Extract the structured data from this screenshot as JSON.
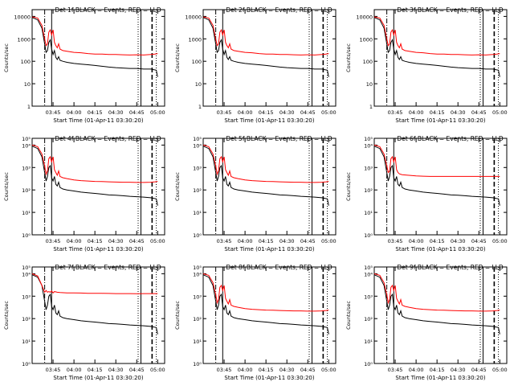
{
  "chart_data": [
    {
      "type": "line",
      "title": "Det 1f BLACK = Events, RED = LLD",
      "xlabel": "Start Time (01-Apr-11 03:30:20)",
      "ylabel": "Counts/sec",
      "y_ticks": [
        "1",
        "10",
        "100",
        "1000",
        "10000"
      ],
      "x_ticks": [
        "03:45",
        "04:00",
        "04:15",
        "04:30",
        "04:45",
        "05:00"
      ],
      "series": [
        {
          "name": "Events",
          "color": "#000000",
          "profile": "events_a"
        },
        {
          "name": "LLD",
          "color": "#ff0000",
          "profile": "lld_a"
        }
      ]
    },
    {
      "type": "line",
      "title": "Det 2f BLACK = Events, RED = LLD",
      "xlabel": "Start Time (01-Apr-11 03:30:20)",
      "ylabel": "Counts/sec",
      "y_ticks": [
        "1",
        "10",
        "100",
        "1000",
        "10000"
      ],
      "x_ticks": [
        "03:45",
        "04:00",
        "04:15",
        "04:30",
        "04:45",
        "05:00"
      ],
      "series": [
        {
          "name": "Events",
          "color": "#000000",
          "profile": "events_a"
        },
        {
          "name": "LLD",
          "color": "#ff0000",
          "profile": "lld_a"
        }
      ]
    },
    {
      "type": "line",
      "title": "Det 3f BLACK = Events, RED = LLD",
      "xlabel": "Start Time (01-Apr-11 03:30:20)",
      "ylabel": "Counts/sec",
      "y_ticks": [
        "1",
        "10",
        "100",
        "1000",
        "10000"
      ],
      "x_ticks": [
        "03:45",
        "04:00",
        "04:15",
        "04:30",
        "04:45",
        "05:00"
      ],
      "series": [
        {
          "name": "Events",
          "color": "#000000",
          "profile": "events_a"
        },
        {
          "name": "LLD",
          "color": "#ff0000",
          "profile": "lld_a"
        }
      ]
    },
    {
      "type": "line",
      "title": "Det 4f BLACK = Events, RED = LLD",
      "xlabel": "Start Time (01-Apr-11 03:30:20)",
      "ylabel": "Counts/sec",
      "y_ticks": [
        "10⁰",
        "10¹",
        "10²",
        "10³",
        "10⁴",
        "10⁵"
      ],
      "x_ticks": [
        "03:45",
        "04:00",
        "04:15",
        "04:30",
        "04:45",
        "05:00"
      ],
      "series": [
        {
          "name": "Events",
          "color": "#000000",
          "profile": "events_b"
        },
        {
          "name": "LLD",
          "color": "#ff0000",
          "profile": "lld_b"
        }
      ]
    },
    {
      "type": "line",
      "title": "Det 5f BLACK = Events, RED = LLD",
      "xlabel": "Start Time (01-Apr-11 03:30:20)",
      "ylabel": "Counts/sec",
      "y_ticks": [
        "10⁰",
        "10¹",
        "10²",
        "10³",
        "10⁴",
        "10⁵"
      ],
      "x_ticks": [
        "03:45",
        "04:00",
        "04:15",
        "04:30",
        "04:45",
        "05:00"
      ],
      "series": [
        {
          "name": "Events",
          "color": "#000000",
          "profile": "events_b"
        },
        {
          "name": "LLD",
          "color": "#ff0000",
          "profile": "lld_b"
        }
      ]
    },
    {
      "type": "line",
      "title": "Det 6f BLACK = Events, RED = LLD",
      "xlabel": "Start Time (01-Apr-11 03:30:20)",
      "ylabel": "Counts/sec",
      "y_ticks": [
        "10⁰",
        "10¹",
        "10²",
        "10³",
        "10⁴",
        "10⁵"
      ],
      "x_ticks": [
        "03:45",
        "04:00",
        "04:15",
        "04:30",
        "04:45",
        "05:00"
      ],
      "series": [
        {
          "name": "Events",
          "color": "#000000",
          "profile": "events_b"
        },
        {
          "name": "LLD",
          "color": "#ff0000",
          "profile": "lld_c"
        }
      ]
    },
    {
      "type": "line",
      "title": "Det 7f BLACK = Events, RED = LLD",
      "xlabel": "Start Time (01-Apr-11 03:30:20)",
      "ylabel": "Counts/sec",
      "y_ticks": [
        "10⁰",
        "10¹",
        "10²",
        "10³",
        "10⁴",
        "10⁵"
      ],
      "x_ticks": [
        "03:45",
        "04:00",
        "04:15",
        "04:30",
        "04:45",
        "05:00"
      ],
      "series": [
        {
          "name": "Events",
          "color": "#000000",
          "profile": "events_b"
        },
        {
          "name": "LLD",
          "color": "#ff0000",
          "profile": "lld_d"
        }
      ]
    },
    {
      "type": "line",
      "title": "Det 8f BLACK = Events, RED = LLD",
      "xlabel": "Start Time (01-Apr-11 03:30:20)",
      "ylabel": "Counts/sec",
      "y_ticks": [
        "10⁰",
        "10¹",
        "10²",
        "10³",
        "10⁴",
        "10⁵"
      ],
      "x_ticks": [
        "03:45",
        "04:00",
        "04:15",
        "04:30",
        "04:45",
        "05:00"
      ],
      "series": [
        {
          "name": "Events",
          "color": "#000000",
          "profile": "events_b"
        },
        {
          "name": "LLD",
          "color": "#ff0000",
          "profile": "lld_b"
        }
      ]
    },
    {
      "type": "line",
      "title": "Det 9f BLACK = Events, RED = LLD",
      "xlabel": "Start Time (01-Apr-11 03:30:20)",
      "ylabel": "Counts/sec",
      "y_ticks": [
        "10⁰",
        "10¹",
        "10²",
        "10³",
        "10⁴",
        "10⁵"
      ],
      "x_ticks": [
        "03:45",
        "04:00",
        "04:15",
        "04:30",
        "04:45",
        "05:00"
      ],
      "series": [
        {
          "name": "Events",
          "color": "#000000",
          "profile": "events_b"
        },
        {
          "name": "LLD",
          "color": "#ff0000",
          "profile": "lld_b"
        }
      ]
    }
  ],
  "profiles": {
    "events_a": [
      [
        0,
        9000
      ],
      [
        4,
        7000
      ],
      [
        7,
        3000
      ],
      [
        9,
        600
      ],
      [
        10,
        250
      ],
      [
        11,
        300
      ],
      [
        12,
        700
      ],
      [
        13,
        900
      ],
      [
        14,
        350
      ],
      [
        15,
        200
      ],
      [
        16,
        300
      ],
      [
        17,
        150
      ],
      [
        18,
        120
      ],
      [
        19,
        160
      ],
      [
        20,
        110
      ],
      [
        22,
        100
      ],
      [
        25,
        90
      ],
      [
        30,
        80
      ],
      [
        35,
        75
      ],
      [
        40,
        70
      ],
      [
        45,
        65
      ],
      [
        50,
        60
      ],
      [
        55,
        55
      ],
      [
        60,
        52
      ],
      [
        65,
        50
      ],
      [
        70,
        48
      ],
      [
        75,
        48
      ],
      [
        80,
        45
      ],
      [
        85,
        45
      ],
      [
        89,
        40
      ],
      [
        90,
        20
      ]
    ],
    "lld_a": [
      [
        0,
        9500
      ],
      [
        4,
        8500
      ],
      [
        7,
        4000
      ],
      [
        9,
        1000
      ],
      [
        10,
        500
      ],
      [
        11,
        600
      ],
      [
        12,
        2000
      ],
      [
        13,
        2500
      ],
      [
        14,
        1500
      ],
      [
        15,
        2500
      ],
      [
        16,
        700
      ],
      [
        17,
        500
      ],
      [
        18,
        400
      ],
      [
        19,
        600
      ],
      [
        20,
        350
      ],
      [
        22,
        300
      ],
      [
        25,
        280
      ],
      [
        30,
        250
      ],
      [
        35,
        240
      ],
      [
        40,
        220
      ],
      [
        45,
        210
      ],
      [
        50,
        210
      ],
      [
        55,
        200
      ],
      [
        60,
        200
      ],
      [
        65,
        195
      ],
      [
        70,
        190
      ],
      [
        75,
        195
      ],
      [
        80,
        190
      ],
      [
        85,
        200
      ],
      [
        88,
        210
      ],
      [
        90,
        220
      ]
    ],
    "events_b": [
      [
        0,
        9000
      ],
      [
        4,
        7000
      ],
      [
        7,
        3000
      ],
      [
        9,
        600
      ],
      [
        10,
        250
      ],
      [
        11,
        400
      ],
      [
        12,
        1000
      ],
      [
        13,
        1200
      ],
      [
        14,
        350
      ],
      [
        15,
        250
      ],
      [
        16,
        400
      ],
      [
        17,
        180
      ],
      [
        18,
        150
      ],
      [
        19,
        220
      ],
      [
        20,
        130
      ],
      [
        22,
        110
      ],
      [
        25,
        100
      ],
      [
        30,
        90
      ],
      [
        35,
        80
      ],
      [
        40,
        75
      ],
      [
        45,
        70
      ],
      [
        50,
        65
      ],
      [
        55,
        60
      ],
      [
        60,
        58
      ],
      [
        65,
        55
      ],
      [
        70,
        52
      ],
      [
        75,
        50
      ],
      [
        80,
        48
      ],
      [
        85,
        45
      ],
      [
        89,
        40
      ],
      [
        90,
        20
      ]
    ],
    "lld_b": [
      [
        0,
        10000
      ],
      [
        4,
        8500
      ],
      [
        7,
        4000
      ],
      [
        9,
        1200
      ],
      [
        10,
        500
      ],
      [
        11,
        700
      ],
      [
        12,
        2500
      ],
      [
        13,
        3000
      ],
      [
        14,
        1800
      ],
      [
        15,
        3000
      ],
      [
        16,
        800
      ],
      [
        17,
        600
      ],
      [
        18,
        450
      ],
      [
        19,
        700
      ],
      [
        20,
        400
      ],
      [
        22,
        350
      ],
      [
        25,
        320
      ],
      [
        30,
        280
      ],
      [
        35,
        260
      ],
      [
        40,
        250
      ],
      [
        45,
        240
      ],
      [
        50,
        235
      ],
      [
        55,
        230
      ],
      [
        60,
        225
      ],
      [
        65,
        220
      ],
      [
        70,
        220
      ],
      [
        75,
        215
      ],
      [
        80,
        215
      ],
      [
        85,
        220
      ],
      [
        88,
        230
      ],
      [
        90,
        240
      ]
    ],
    "lld_c": [
      [
        0,
        10000
      ],
      [
        4,
        8500
      ],
      [
        7,
        4000
      ],
      [
        9,
        1200
      ],
      [
        10,
        600
      ],
      [
        11,
        700
      ],
      [
        12,
        2500
      ],
      [
        13,
        3000
      ],
      [
        14,
        1800
      ],
      [
        15,
        3000
      ],
      [
        16,
        800
      ],
      [
        17,
        600
      ],
      [
        18,
        520
      ],
      [
        20,
        480
      ],
      [
        25,
        450
      ],
      [
        30,
        420
      ],
      [
        35,
        410
      ],
      [
        40,
        400
      ],
      [
        45,
        400
      ],
      [
        50,
        400
      ],
      [
        55,
        400
      ],
      [
        60,
        400
      ],
      [
        65,
        400
      ],
      [
        70,
        400
      ],
      [
        75,
        400
      ],
      [
        80,
        400
      ],
      [
        85,
        400
      ],
      [
        90,
        400
      ]
    ],
    "lld_d": [
      [
        0,
        10000
      ],
      [
        4,
        8000
      ],
      [
        7,
        3000
      ],
      [
        9,
        1500
      ],
      [
        10,
        1800
      ],
      [
        11,
        1500
      ],
      [
        12,
        1600
      ],
      [
        13,
        1500
      ],
      [
        14,
        1700
      ],
      [
        15,
        1400
      ],
      [
        16,
        1600
      ],
      [
        18,
        1500
      ],
      [
        20,
        1450
      ],
      [
        25,
        1400
      ],
      [
        30,
        1400
      ],
      [
        35,
        1380
      ],
      [
        40,
        1350
      ],
      [
        45,
        1350
      ],
      [
        50,
        1340
      ],
      [
        55,
        1320
      ],
      [
        60,
        1300
      ],
      [
        65,
        1300
      ],
      [
        70,
        1300
      ],
      [
        75,
        1280
      ],
      [
        80,
        1300
      ],
      [
        85,
        1300
      ],
      [
        90,
        1300
      ]
    ]
  },
  "markers": [
    {
      "x": 9,
      "style": "dash-dot"
    },
    {
      "x": 14,
      "style": "solid"
    },
    {
      "x": 76,
      "style": "dotted"
    },
    {
      "x": 78,
      "style": "solid"
    },
    {
      "x": 86,
      "style": "dashed"
    },
    {
      "x": 89,
      "style": "dotted"
    }
  ],
  "x_range": [
    0,
    95
  ],
  "x_tick_positions": [
    15,
    30,
    45,
    60,
    75,
    90
  ]
}
